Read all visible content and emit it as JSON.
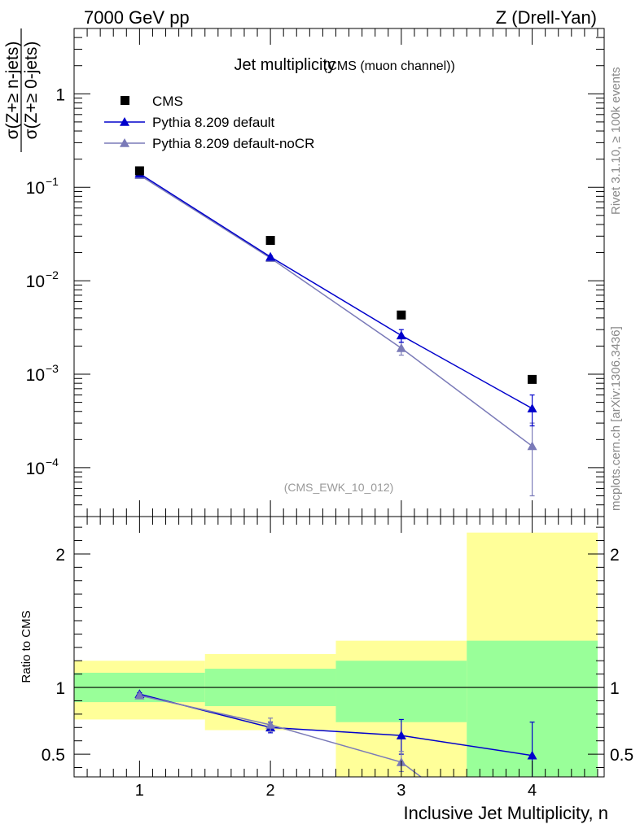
{
  "chart_data": [
    {
      "type": "scatter",
      "title": "Jet multiplicity",
      "subtitle": "(CMS (muon channel))",
      "top_left_label": "7000 GeV pp",
      "top_right_label": "Z (Drell-Yan)",
      "watermark": "(CMS_EWK_10_012)",
      "side_label_1": "Rivet 3.1.10, ≥ 100k events",
      "side_label_2": "mcplots.cern.ch [arXiv:1306.3436]",
      "ylabel_num": "σ(Z+≥ n-jets)",
      "ylabel_den": "σ(Z+≥ 0-jets)",
      "y_scale": "log",
      "ylim": [
        3e-05,
        5
      ],
      "xlim": [
        0.5,
        4.55
      ],
      "x_ticks": [
        "1",
        "2",
        "3",
        "4"
      ],
      "y_ticks": [
        {
          "value": 1,
          "base": "1",
          "exp": ""
        },
        {
          "value": 0.1,
          "base": "10",
          "exp": "−1"
        },
        {
          "value": 0.01,
          "base": "10",
          "exp": "−2"
        },
        {
          "value": 0.001,
          "base": "10",
          "exp": "−3"
        },
        {
          "value": 0.0001,
          "base": "10",
          "exp": "−4"
        }
      ],
      "legend_position": "top-left",
      "series": [
        {
          "name": "CMS",
          "color": "#000000",
          "marker": "square",
          "x": [
            1,
            2,
            3,
            4
          ],
          "y": [
            0.15,
            0.027,
            0.0043,
            0.00088
          ]
        },
        {
          "name": "Pythia 8.209 default",
          "color": "#0000cc",
          "marker": "triangle",
          "x": [
            1,
            2,
            3,
            4
          ],
          "y": [
            0.14,
            0.018,
            0.0026,
            0.00043
          ],
          "err_lo": [
            0.138,
            0.0176,
            0.0022,
            0.00028
          ],
          "err_hi": [
            0.142,
            0.0184,
            0.003,
            0.0006
          ]
        },
        {
          "name": "Pythia 8.209 default-noCR",
          "color": "#7a7ab8",
          "marker": "triangle",
          "x": [
            1,
            2,
            3,
            4
          ],
          "y": [
            0.135,
            0.0175,
            0.0019,
            0.00017
          ],
          "err_lo": [
            0.133,
            0.0171,
            0.0016,
            5e-05
          ],
          "err_hi": [
            0.137,
            0.0179,
            0.0022,
            0.0003
          ]
        }
      ]
    },
    {
      "type": "scatter",
      "ylabel": "Ratio to CMS",
      "xlabel": "Inclusive Jet Multiplicity, n",
      "ylim": [
        0.33,
        2.28
      ],
      "xlim": [
        0.5,
        4.55
      ],
      "x_ticks": [
        "1",
        "2",
        "3",
        "4"
      ],
      "y_ticks": [
        "0.5",
        "1",
        "2"
      ],
      "reference_line": 1,
      "bands": [
        {
          "x0": 0.5,
          "x1": 1.5,
          "green": [
            0.89,
            1.11
          ],
          "yellow": [
            0.76,
            1.2
          ]
        },
        {
          "x0": 1.5,
          "x1": 2.5,
          "green": [
            0.86,
            1.14
          ],
          "yellow": [
            0.68,
            1.25
          ]
        },
        {
          "x0": 2.5,
          "x1": 3.5,
          "green": [
            0.74,
            1.2
          ],
          "yellow": [
            0.33,
            1.35
          ]
        },
        {
          "x0": 3.5,
          "x1": 4.5,
          "green": [
            0.33,
            1.35
          ],
          "yellow": [
            0.33,
            2.16
          ]
        }
      ],
      "band_colors": {
        "green": "#99ff99",
        "yellow": "#ffff99"
      },
      "series": [
        {
          "name": "Pythia 8.209 default",
          "color": "#0000cc",
          "x": [
            1,
            2,
            3,
            4
          ],
          "y": [
            0.95,
            0.7,
            0.64,
            0.49
          ],
          "err_lo": [
            0.94,
            0.66,
            0.5,
            0.3
          ],
          "err_hi": [
            0.96,
            0.74,
            0.76,
            0.74
          ]
        },
        {
          "name": "Pythia 8.209 default-noCR",
          "color": "#7a7ab8",
          "x": [
            1,
            2,
            3,
            3.15
          ],
          "y": [
            0.94,
            0.72,
            0.44,
            0.33
          ],
          "err_lo": [
            0.93,
            0.67,
            0.37,
            null
          ],
          "err_hi": [
            0.95,
            0.77,
            0.52,
            null
          ]
        }
      ]
    }
  ]
}
